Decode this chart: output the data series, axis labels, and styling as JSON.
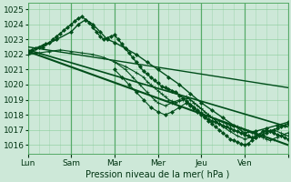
{
  "xlabel": "Pression niveau de la mer( hPa )",
  "bg_color": "#cde8d8",
  "grid_color": "#88cc99",
  "grid_color_major": "#55aa66",
  "line_color": "#004d1a",
  "xlim": [
    0,
    144
  ],
  "ylim": [
    1015.4,
    1025.4
  ],
  "yticks": [
    1016,
    1017,
    1018,
    1019,
    1020,
    1021,
    1022,
    1023,
    1024,
    1025
  ],
  "xtick_positions": [
    0,
    24,
    48,
    72,
    96,
    120,
    144
  ],
  "xtick_labels": [
    "Lun",
    "Sam",
    "Mar",
    "Mer",
    "Jeu",
    "Ven",
    ""
  ],
  "day_vlines": [
    0,
    24,
    48,
    72,
    96,
    120,
    144
  ],
  "hour_vlines_step": 6,
  "series": [
    {
      "x": [
        0,
        2,
        4,
        6,
        8,
        10,
        12,
        14,
        16,
        18,
        20,
        22,
        24,
        26,
        28,
        30,
        32,
        34,
        36,
        38,
        40,
        42,
        44,
        46,
        48,
        50,
        52,
        54,
        56,
        58,
        60,
        62,
        64,
        66,
        68,
        70,
        72,
        74,
        76,
        78,
        80,
        82,
        84,
        86,
        88,
        90,
        92,
        94,
        96,
        98,
        100,
        102,
        104,
        106,
        108,
        110,
        112,
        114,
        116,
        118,
        120,
        122,
        124,
        126,
        128,
        130,
        132,
        134,
        136,
        138,
        140,
        142,
        144
      ],
      "y": [
        1022.2,
        1022.3,
        1022.4,
        1022.5,
        1022.6,
        1022.7,
        1022.8,
        1023.0,
        1023.2,
        1023.4,
        1023.6,
        1023.8,
        1024.0,
        1024.2,
        1024.4,
        1024.5,
        1024.3,
        1024.1,
        1023.8,
        1023.5,
        1023.2,
        1023.0,
        1023.1,
        1023.2,
        1023.3,
        1023.0,
        1022.7,
        1022.4,
        1022.1,
        1021.8,
        1021.5,
        1021.2,
        1020.9,
        1020.7,
        1020.5,
        1020.3,
        1020.1,
        1019.9,
        1019.8,
        1019.7,
        1019.6,
        1019.5,
        1019.3,
        1019.1,
        1018.9,
        1018.7,
        1018.5,
        1018.3,
        1018.1,
        1017.9,
        1017.7,
        1017.6,
        1017.5,
        1017.4,
        1017.3,
        1017.2,
        1017.1,
        1017.0,
        1016.9,
        1016.8,
        1016.7,
        1016.6,
        1016.5,
        1016.5,
        1016.6,
        1016.7,
        1016.8,
        1016.9,
        1017.0,
        1017.1,
        1017.2,
        1017.3,
        1017.4
      ],
      "marker": "D",
      "markersize": 2.0,
      "lw": 1.0
    },
    {
      "x": [
        0,
        8,
        16,
        24,
        28,
        32,
        36,
        40,
        44,
        48,
        54,
        60,
        66,
        72,
        78,
        84,
        90,
        96,
        102,
        108,
        114,
        120,
        126,
        132,
        138,
        144
      ],
      "y": [
        1022.1,
        1022.5,
        1023.0,
        1023.5,
        1024.0,
        1024.3,
        1024.0,
        1023.5,
        1023.0,
        1022.8,
        1022.4,
        1022.0,
        1021.5,
        1021.0,
        1020.5,
        1020.0,
        1019.4,
        1018.8,
        1018.3,
        1017.8,
        1017.3,
        1016.8,
        1016.9,
        1017.1,
        1017.3,
        1017.5
      ],
      "marker": "D",
      "markersize": 2.0,
      "lw": 1.0
    },
    {
      "x": [
        0,
        144
      ],
      "y": [
        1022.5,
        1019.8
      ],
      "marker": null,
      "lw": 1.0
    },
    {
      "x": [
        0,
        144
      ],
      "y": [
        1022.3,
        1017.2
      ],
      "marker": null,
      "lw": 1.2
    },
    {
      "x": [
        0,
        144
      ],
      "y": [
        1022.2,
        1016.0
      ],
      "marker": null,
      "lw": 1.5
    },
    {
      "x": [
        0,
        6,
        12,
        18,
        24,
        30,
        36,
        42,
        48,
        54,
        60,
        64,
        66,
        68,
        70,
        72,
        74,
        76,
        78,
        80,
        82,
        84,
        86,
        88,
        90,
        92,
        94,
        96,
        98,
        100,
        102,
        104,
        106,
        108,
        110,
        112,
        114,
        116,
        118,
        120,
        122,
        124,
        126,
        128,
        130,
        132,
        134,
        136,
        138,
        140,
        142,
        144
      ],
      "y": [
        1022.0,
        1022.1,
        1022.2,
        1022.3,
        1022.2,
        1022.1,
        1022.0,
        1021.8,
        1021.5,
        1021.2,
        1020.8,
        1020.5,
        1020.2,
        1020.0,
        1019.8,
        1019.6,
        1019.4,
        1019.2,
        1019.0,
        1018.9,
        1018.8,
        1018.9,
        1019.0,
        1019.1,
        1019.0,
        1018.8,
        1018.6,
        1018.4,
        1018.2,
        1018.0,
        1017.8,
        1017.7,
        1017.6,
        1017.5,
        1017.4,
        1017.3,
        1017.2,
        1017.2,
        1017.1,
        1017.0,
        1016.9,
        1016.8,
        1016.7,
        1016.6,
        1016.5,
        1016.4,
        1016.3,
        1016.4,
        1016.5,
        1016.6,
        1016.7,
        1016.8
      ],
      "marker": "+",
      "markersize": 2.5,
      "lw": 0.8
    },
    {
      "x": [
        48,
        54,
        58,
        62,
        66,
        70,
        72,
        76,
        80,
        84,
        88,
        92,
        96,
        100,
        104,
        108,
        112,
        116,
        120,
        124,
        128,
        132,
        136,
        140,
        144
      ],
      "y": [
        1021.5,
        1021.0,
        1020.5,
        1020.0,
        1019.5,
        1019.0,
        1018.8,
        1018.6,
        1018.8,
        1019.0,
        1019.2,
        1018.8,
        1018.4,
        1018.0,
        1017.6,
        1017.2,
        1016.9,
        1016.6,
        1016.4,
        1016.5,
        1016.7,
        1016.9,
        1017.0,
        1016.8,
        1016.6
      ],
      "marker": "+",
      "markersize": 2.5,
      "lw": 0.8
    },
    {
      "x": [
        48,
        52,
        56,
        60,
        64,
        68,
        72,
        76,
        80,
        84,
        88,
        90,
        92,
        94,
        96,
        98,
        100,
        102,
        104,
        106,
        108,
        110,
        112,
        114,
        116,
        118,
        120,
        122,
        124,
        126,
        128,
        130,
        132,
        134,
        136,
        138,
        140,
        142,
        144
      ],
      "y": [
        1021.0,
        1020.5,
        1020.0,
        1019.5,
        1019.0,
        1018.5,
        1018.2,
        1018.0,
        1018.2,
        1018.5,
        1018.8,
        1018.6,
        1018.4,
        1018.2,
        1018.0,
        1017.8,
        1017.6,
        1017.4,
        1017.2,
        1017.0,
        1016.8,
        1016.6,
        1016.4,
        1016.3,
        1016.2,
        1016.1,
        1016.0,
        1016.1,
        1016.3,
        1016.5,
        1016.7,
        1016.9,
        1017.0,
        1016.9,
        1016.8,
        1016.7,
        1016.6,
        1016.5,
        1016.4
      ],
      "marker": "D",
      "markersize": 2.0,
      "lw": 0.8
    }
  ]
}
